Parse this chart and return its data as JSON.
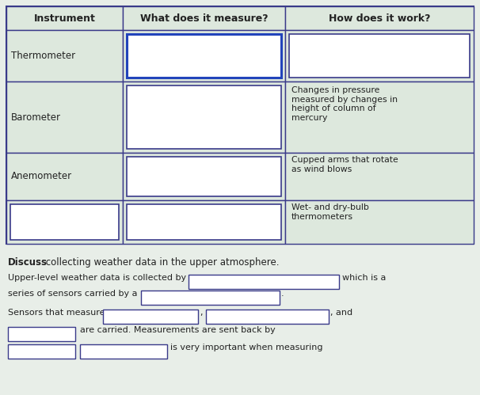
{
  "bg_color": "#e8eee8",
  "table_bg": "#dde8dd",
  "cell_bg": "#dde5dd",
  "box_fill": "white",
  "box_border_dark": "#3a3a8a",
  "box_border_light": "#8888aa",
  "text_color": "#222222",
  "bold_color": "#111111",
  "title_row": [
    "Instrument",
    "What does it measure?",
    "How does it work?"
  ],
  "how_texts": [
    "",
    "Changes in pressure\nmeasured by changes in\nheight of column of\nmercury",
    "Cupped arms that rotate\nas wind blows",
    "Wet- and dry-bulb\nthermometers"
  ],
  "discuss_bold": "Discuss",
  "discuss_text": " collecting weather data in the upper atmosphere.",
  "line1_pre": "Upper-level weather data is collected by a ",
  "line1_post": "which is a",
  "line2_pre": "series of sensors carried by a ",
  "line3_pre": "Sensors that measure ",
  "line3_mid": ", and",
  "line4_pre": "are carried. Measurements are sent back by",
  "line5_post": "is very important when measuring"
}
